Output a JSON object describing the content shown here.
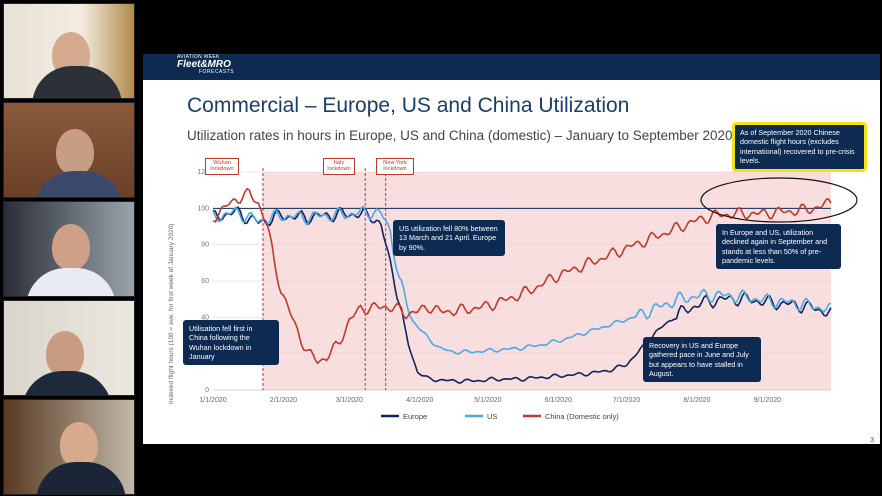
{
  "slide": {
    "logo": {
      "line1": "AVIATION WEEK",
      "line2": "Fleet&MRO",
      "line3": "FORECASTS"
    },
    "title": "Commercial – Europe, US and China Utilization",
    "subtitle": "Utilization rates in hours in Europe, US and China (domestic) – January to September 2020",
    "page_number": "3",
    "events": {
      "wuhan": "Wuhan lockdown",
      "italy": "Italy lockdown",
      "newyork": "New York lockdown"
    },
    "callouts": {
      "china": "As of September 2020 Chinese domestic flight hours (excludes international) recovered to pre-crisis levels.",
      "us_fell": "US utilization fell 80% between 13 March and 21 April. Europe by 90%.",
      "eu_us_decline": "In Europe and US, utilization declined again in September and stands at less than 50% of pre-pandemic levels.",
      "china_first": "Utilisation fell first in China following the Wuhan lockdown in January",
      "recovery": "Recovery in US and Europe gathered pace in June and July but appears to have stalled in August."
    },
    "colors": {
      "europe": "#13235e",
      "us": "#4aaae6",
      "china": "#c0392b",
      "shade": "#f8dede",
      "navy": "#0d2b52",
      "highlight": "#f2e313"
    }
  },
  "chart_data": {
    "type": "line",
    "ylabel": "Indexed flight hours (100 = ave. for first week of January 2020)",
    "xlabel": "",
    "yticks": [
      0,
      20,
      40,
      60,
      80,
      100,
      120
    ],
    "ylim": [
      0,
      120
    ],
    "xticks": [
      "1/1/2020",
      "2/1/2020",
      "3/1/2020",
      "4/1/2020",
      "5/1/2020",
      "6/1/2020",
      "7/1/2020",
      "8/1/2020",
      "9/1/2020"
    ],
    "xlim_days": [
      0,
      272
    ],
    "event_days": [
      22,
      67,
      76
    ],
    "series": [
      {
        "name": "Europe",
        "points": [
          [
            0,
            95
          ],
          [
            10,
            98
          ],
          [
            20,
            92
          ],
          [
            30,
            96
          ],
          [
            40,
            95
          ],
          [
            50,
            96
          ],
          [
            60,
            97
          ],
          [
            70,
            96
          ],
          [
            74,
            90
          ],
          [
            80,
            60
          ],
          [
            86,
            25
          ],
          [
            90,
            10
          ],
          [
            95,
            6
          ],
          [
            105,
            5
          ],
          [
            115,
            5
          ],
          [
            125,
            6
          ],
          [
            135,
            6
          ],
          [
            145,
            7
          ],
          [
            155,
            8
          ],
          [
            165,
            9
          ],
          [
            175,
            11
          ],
          [
            182,
            14
          ],
          [
            188,
            22
          ],
          [
            195,
            32
          ],
          [
            205,
            42
          ],
          [
            215,
            48
          ],
          [
            225,
            50
          ],
          [
            235,
            50
          ],
          [
            245,
            48
          ],
          [
            255,
            47
          ],
          [
            265,
            45
          ],
          [
            272,
            42
          ]
        ]
      },
      {
        "name": "US",
        "points": [
          [
            0,
            95
          ],
          [
            10,
            98
          ],
          [
            20,
            93
          ],
          [
            30,
            96
          ],
          [
            40,
            95
          ],
          [
            50,
            96
          ],
          [
            60,
            97
          ],
          [
            70,
            98
          ],
          [
            74,
            97
          ],
          [
            78,
            88
          ],
          [
            82,
            60
          ],
          [
            88,
            38
          ],
          [
            95,
            28
          ],
          [
            100,
            23
          ],
          [
            105,
            21
          ],
          [
            115,
            21
          ],
          [
            125,
            22
          ],
          [
            135,
            23
          ],
          [
            145,
            25
          ],
          [
            155,
            28
          ],
          [
            165,
            32
          ],
          [
            175,
            36
          ],
          [
            185,
            40
          ],
          [
            195,
            45
          ],
          [
            205,
            50
          ],
          [
            215,
            52
          ],
          [
            225,
            52
          ],
          [
            235,
            51
          ],
          [
            245,
            49
          ],
          [
            255,
            48
          ],
          [
            265,
            46
          ],
          [
            272,
            44
          ]
        ]
      },
      {
        "name": "China (Domestic only)",
        "points": [
          [
            0,
            95
          ],
          [
            5,
            100
          ],
          [
            10,
            105
          ],
          [
            16,
            108
          ],
          [
            20,
            103
          ],
          [
            24,
            90
          ],
          [
            27,
            70
          ],
          [
            30,
            55
          ],
          [
            34,
            42
          ],
          [
            38,
            30
          ],
          [
            42,
            20
          ],
          [
            46,
            16
          ],
          [
            50,
            18
          ],
          [
            55,
            25
          ],
          [
            60,
            38
          ],
          [
            65,
            45
          ],
          [
            70,
            45
          ],
          [
            75,
            46
          ],
          [
            80,
            45
          ],
          [
            85,
            42
          ],
          [
            90,
            43
          ],
          [
            95,
            46
          ],
          [
            100,
            43
          ],
          [
            110,
            44
          ],
          [
            120,
            46
          ],
          [
            130,
            50
          ],
          [
            140,
            55
          ],
          [
            150,
            62
          ],
          [
            160,
            67
          ],
          [
            170,
            72
          ],
          [
            180,
            77
          ],
          [
            190,
            82
          ],
          [
            200,
            87
          ],
          [
            210,
            92
          ],
          [
            220,
            96
          ],
          [
            230,
            97
          ],
          [
            240,
            97
          ],
          [
            250,
            98
          ],
          [
            260,
            99
          ],
          [
            268,
            101
          ],
          [
            272,
            104
          ]
        ]
      }
    ]
  }
}
